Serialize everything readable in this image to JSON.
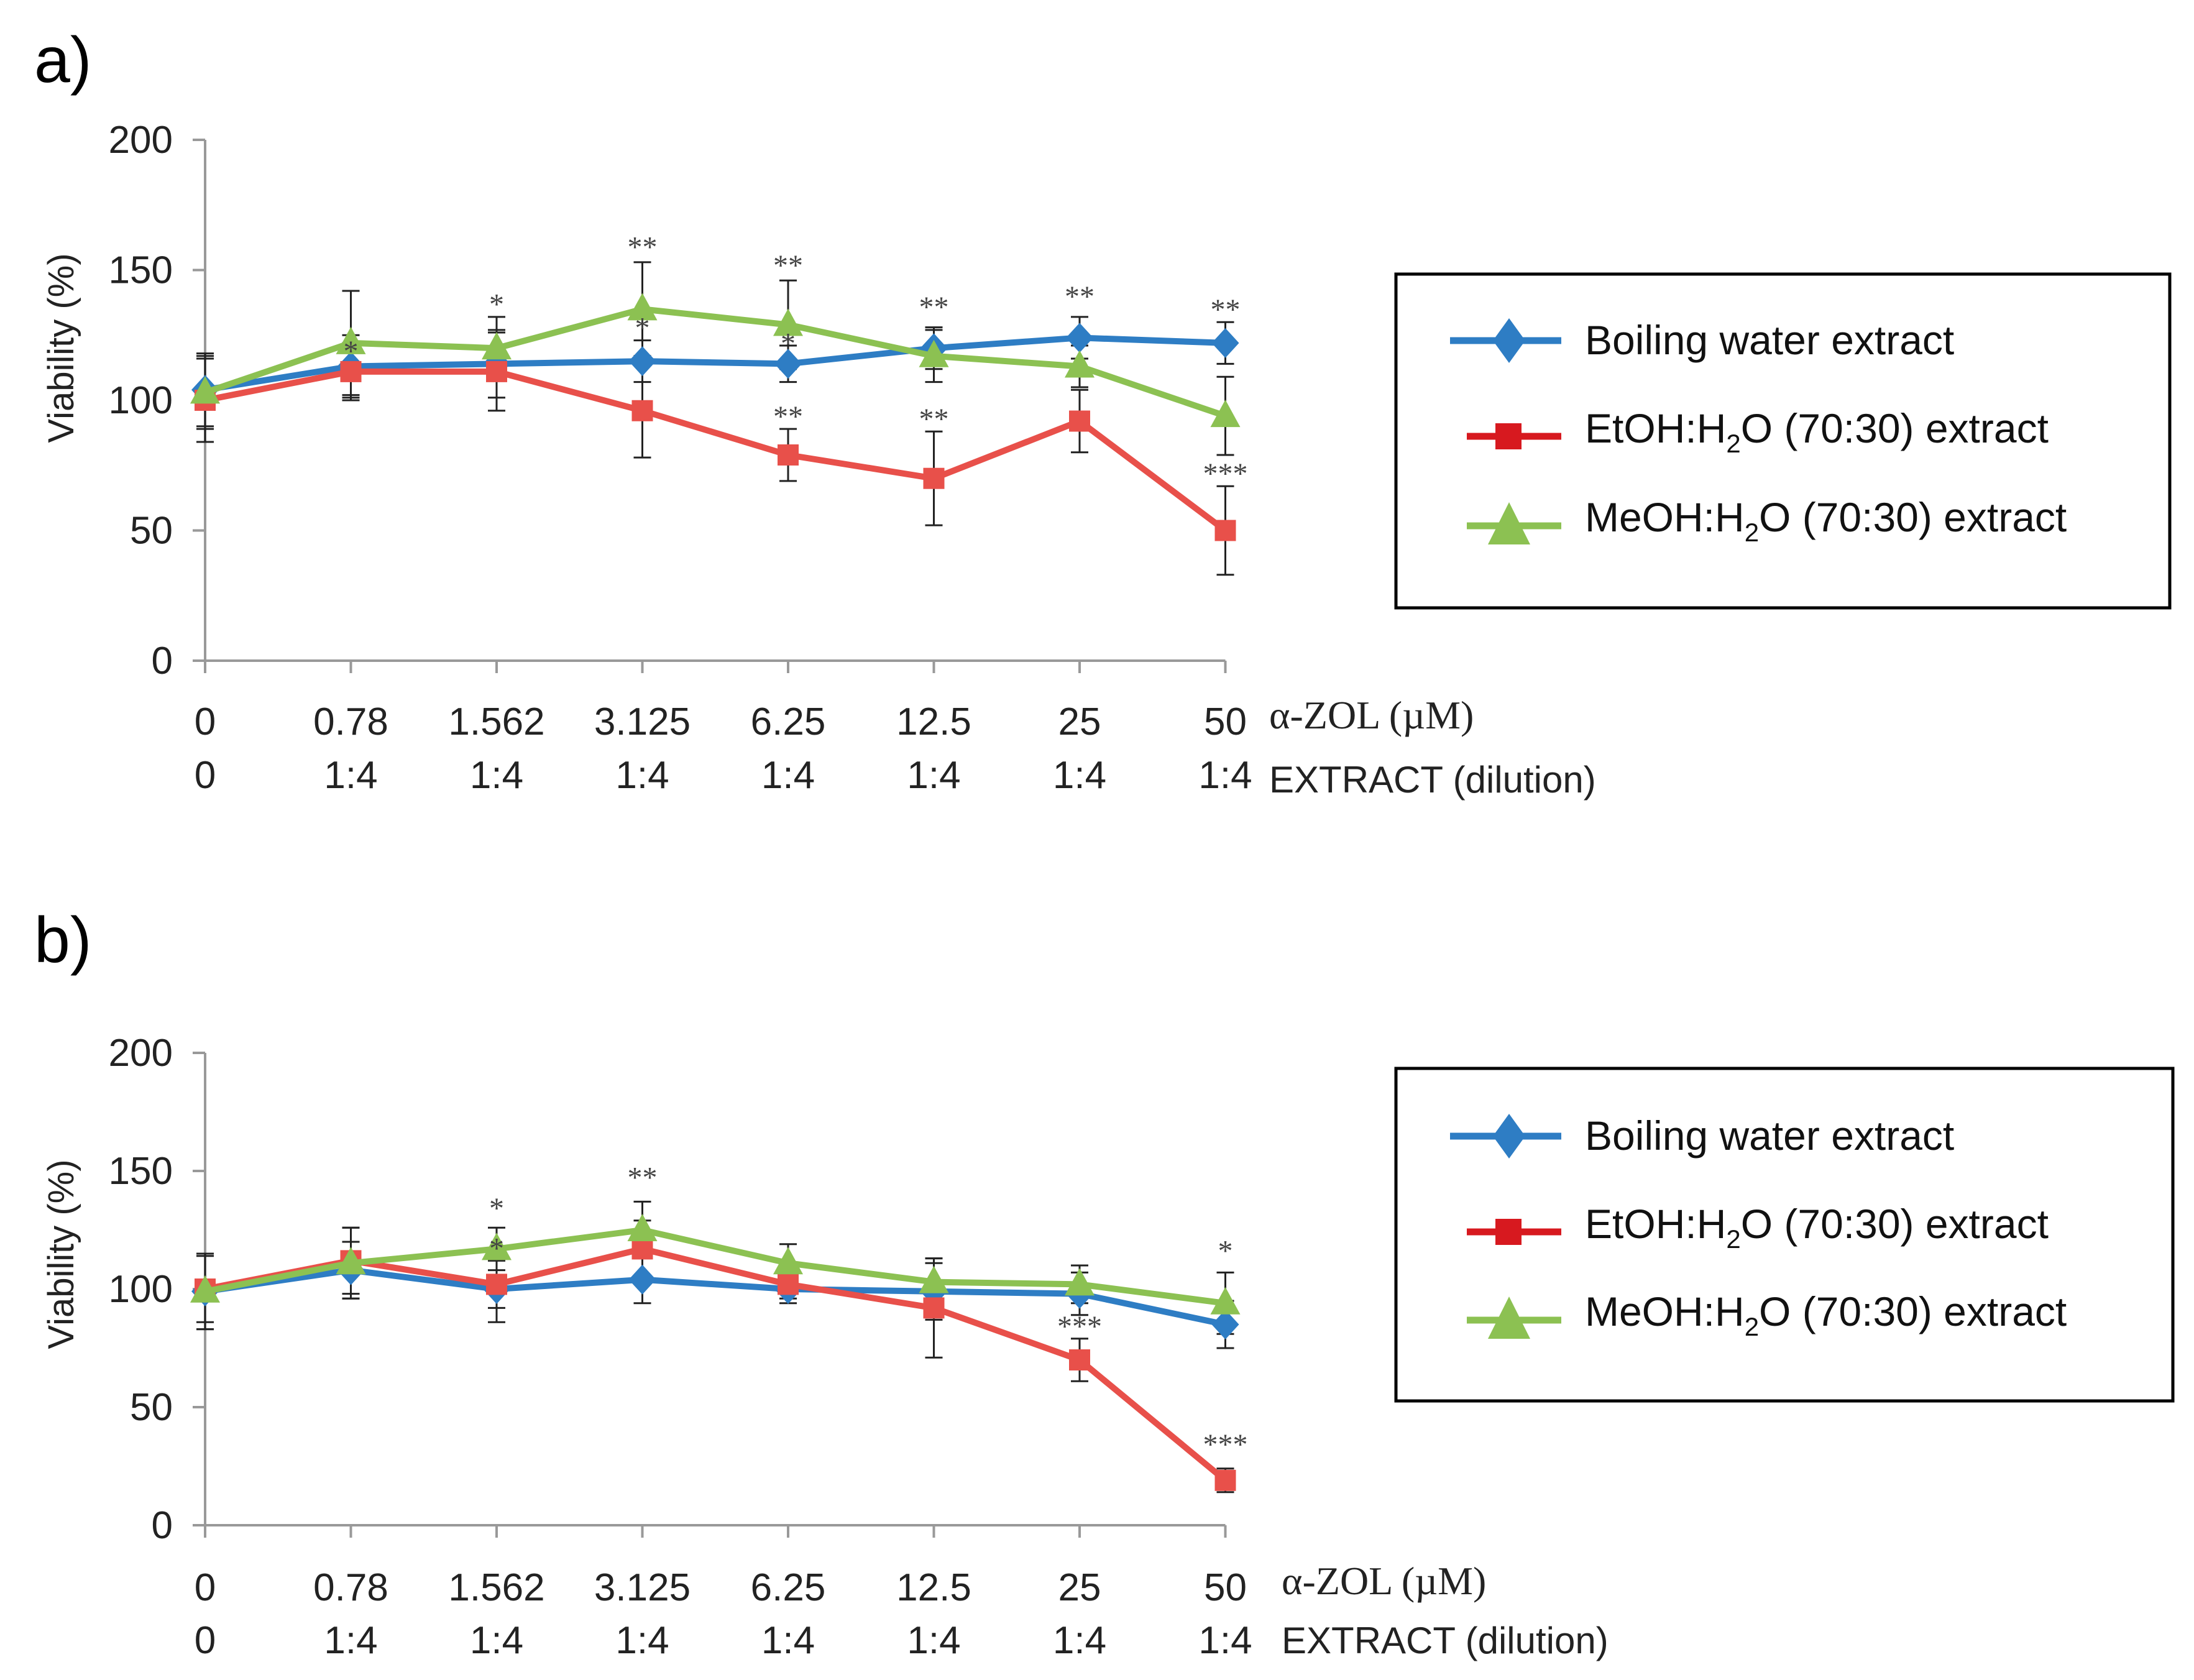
{
  "chart_data": [
    {
      "type": "line",
      "panel_label": "a)",
      "ylabel": "Viability (%)",
      "ylim": [
        0,
        200
      ],
      "yticks": [
        0,
        50,
        100,
        150,
        200
      ],
      "categories": [
        "0",
        "0.78",
        "1.562",
        "3.125",
        "6.25",
        "12.5",
        "25",
        "50"
      ],
      "categories2": [
        "0",
        "1:4",
        "1:4",
        "1:4",
        "1:4",
        "1:4",
        "1:4",
        "1:4"
      ],
      "xlabel": "α-ZOL (µM)",
      "xlabel2": "EXTRACT (dilution)",
      "legend_position": "right",
      "series": [
        {
          "name": "Boiling water extract",
          "legend_main": "Boiling water extract",
          "legend_sub": "",
          "legend_tail": "",
          "color": "#2E7DC4",
          "marker": "diamond",
          "values": [
            104,
            113,
            114,
            115,
            114,
            120,
            124,
            122
          ],
          "errors": [
            14,
            12,
            13,
            8,
            7,
            8,
            8,
            8
          ]
        },
        {
          "name": "EtOH:H2O (70:30) extract",
          "legend_main": "EtOH:H",
          "legend_sub": "2",
          "legend_tail": "O (70:30) extract",
          "color": "#E8504A",
          "marker": "square",
          "values": [
            100,
            111,
            111,
            96,
            79,
            70,
            92,
            50
          ],
          "errors": [
            16,
            11,
            15,
            18,
            10,
            18,
            12,
            17
          ]
        },
        {
          "name": "MeOH:H2O (70:30) extract",
          "legend_main": "MeOH:H",
          "legend_sub": "2",
          "legend_tail": "O (70:30) extract",
          "color": "#8CC152",
          "marker": "triangle",
          "values": [
            103,
            122,
            120,
            135,
            129,
            117,
            113,
            94
          ],
          "errors": [
            14,
            20,
            12,
            18,
            17,
            10,
            8,
            15
          ]
        }
      ],
      "annotations": [
        {
          "x_index": 1,
          "y": 115,
          "text": "*"
        },
        {
          "x_index": 2,
          "y": 133,
          "text": "*"
        },
        {
          "x_index": 3,
          "y": 155,
          "text": "**"
        },
        {
          "x_index": 3,
          "y": 124,
          "text": "*"
        },
        {
          "x_index": 4,
          "y": 148,
          "text": "**"
        },
        {
          "x_index": 4,
          "y": 118,
          "text": "*"
        },
        {
          "x_index": 4,
          "y": 90,
          "text": "**"
        },
        {
          "x_index": 5,
          "y": 132,
          "text": "**"
        },
        {
          "x_index": 5,
          "y": 89,
          "text": "**"
        },
        {
          "x_index": 6,
          "y": 136,
          "text": "**"
        },
        {
          "x_index": 7,
          "y": 131,
          "text": "**"
        },
        {
          "x_index": 7,
          "y": 68,
          "text": "***"
        }
      ]
    },
    {
      "type": "line",
      "panel_label": "b)",
      "ylabel": "Viability (%)",
      "ylim": [
        0,
        200
      ],
      "yticks": [
        0,
        50,
        100,
        150,
        200
      ],
      "categories": [
        "0",
        "0.78",
        "1.562",
        "3.125",
        "6.25",
        "12.5",
        "25",
        "50"
      ],
      "categories2": [
        "0",
        "1:4",
        "1:4",
        "1:4",
        "1:4",
        "1:4",
        "1:4",
        "1:4"
      ],
      "xlabel": "α-ZOL (µM)",
      "xlabel2": "EXTRACT (dilution)",
      "legend_position": "right",
      "series": [
        {
          "name": "Boiling water extract",
          "legend_main": "Boiling water extract",
          "legend_sub": "",
          "legend_tail": "",
          "color": "#2E7DC4",
          "marker": "diamond",
          "values": [
            99,
            108,
            100,
            104,
            100,
            99,
            98,
            85
          ],
          "errors": [
            16,
            12,
            14,
            10,
            6,
            12,
            9,
            10
          ]
        },
        {
          "name": "EtOH:H2O (70:30) extract",
          "legend_main": "EtOH:H",
          "legend_sub": "2",
          "legend_tail": "O (70:30) extract",
          "color": "#E8504A",
          "marker": "square",
          "values": [
            100,
            112,
            102,
            117,
            102,
            92,
            70,
            19
          ],
          "errors": [
            14,
            14,
            10,
            12,
            6,
            21,
            9,
            5
          ]
        },
        {
          "name": "MeOH:H2O (70:30) extract",
          "legend_main": "MeOH:H",
          "legend_sub": "2",
          "legend_tail": "O (70:30) extract",
          "color": "#8CC152",
          "marker": "triangle",
          "values": [
            99,
            111,
            117,
            125,
            111,
            103,
            102,
            94
          ],
          "errors": [
            16,
            15,
            9,
            12,
            8,
            10,
            8,
            13
          ]
        }
      ],
      "annotations": [
        {
          "x_index": 2,
          "y": 130,
          "text": "*"
        },
        {
          "x_index": 2,
          "y": 113,
          "text": "*"
        },
        {
          "x_index": 3,
          "y": 143,
          "text": "**"
        },
        {
          "x_index": 6,
          "y": 80,
          "text": "***"
        },
        {
          "x_index": 7,
          "y": 112,
          "text": "*"
        },
        {
          "x_index": 7,
          "y": 30,
          "text": "***"
        }
      ]
    }
  ]
}
